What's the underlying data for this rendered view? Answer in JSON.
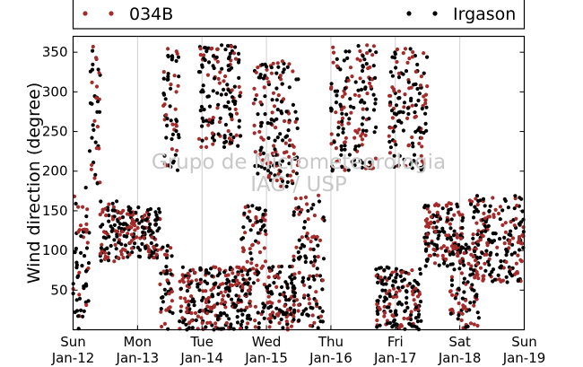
{
  "chart_data": {
    "type": "scatter",
    "title": "",
    "xlabel": "",
    "ylabel": "Wind direction (degree)",
    "xlim": [
      0,
      7
    ],
    "ylim": [
      0,
      370
    ],
    "yticks": [
      50,
      100,
      150,
      200,
      250,
      300,
      350
    ],
    "xticks": [
      {
        "day": "Sun",
        "date": "Jan-12"
      },
      {
        "day": "Mon",
        "date": "Jan-13"
      },
      {
        "day": "Tue",
        "date": "Jan-14"
      },
      {
        "day": "Wed",
        "date": "Jan-15"
      },
      {
        "day": "Thu",
        "date": "Jan-16"
      },
      {
        "day": "Fri",
        "date": "Jan-17"
      },
      {
        "day": "Sat",
        "date": "Jan-18"
      },
      {
        "day": "Sun",
        "date": "Jan-19"
      }
    ],
    "grid": "vertical",
    "legend_position": "top",
    "watermark": [
      "Grupo de Micrometeorologia",
      "IAG / USP"
    ],
    "series": [
      {
        "name": "034B",
        "color": "#a52a2a",
        "marker": "dot"
      },
      {
        "name": "Irgason",
        "color": "#000000",
        "marker": "dot"
      }
    ],
    "clusters": [
      {
        "x": [
          0.0,
          0.25
        ],
        "y": [
          0,
          180
        ]
      },
      {
        "x": [
          0.25,
          0.42
        ],
        "y": [
          180,
          360
        ]
      },
      {
        "x": [
          0.42,
          0.7
        ],
        "y": [
          85,
          165
        ]
      },
      {
        "x": [
          0.7,
          1.35
        ],
        "y": [
          90,
          155
        ]
      },
      {
        "x": [
          1.35,
          1.55
        ],
        "y": [
          0,
          110
        ]
      },
      {
        "x": [
          1.4,
          1.65
        ],
        "y": [
          200,
          360
        ]
      },
      {
        "x": [
          1.65,
          2.75
        ],
        "y": [
          0,
          80
        ]
      },
      {
        "x": [
          1.95,
          2.6
        ],
        "y": [
          230,
          360
        ]
      },
      {
        "x": [
          2.6,
          3.0
        ],
        "y": [
          0,
          160
        ]
      },
      {
        "x": [
          2.8,
          3.5
        ],
        "y": [
          180,
          340
        ]
      },
      {
        "x": [
          3.0,
          3.45
        ],
        "y": [
          0,
          80
        ]
      },
      {
        "x": [
          3.4,
          3.9
        ],
        "y": [
          0,
          170
        ]
      },
      {
        "x": [
          4.0,
          4.7
        ],
        "y": [
          200,
          360
        ]
      },
      {
        "x": [
          4.7,
          5.4
        ],
        "y": [
          0,
          80
        ]
      },
      {
        "x": [
          4.9,
          5.5
        ],
        "y": [
          200,
          360
        ]
      },
      {
        "x": [
          5.45,
          6.05
        ],
        "y": [
          80,
          160
        ]
      },
      {
        "x": [
          5.85,
          6.3
        ],
        "y": [
          0,
          110
        ]
      },
      {
        "x": [
          6.15,
          7.0
        ],
        "y": [
          60,
          170
        ]
      }
    ]
  }
}
